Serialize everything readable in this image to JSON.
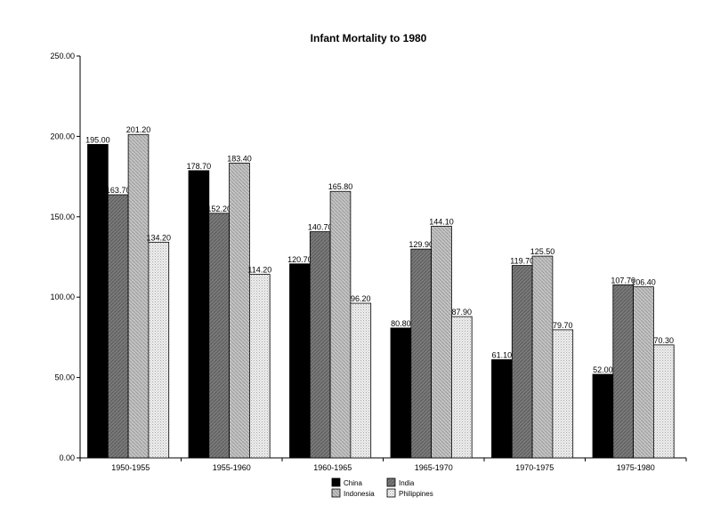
{
  "chart_data": {
    "type": "bar",
    "title": "Infant Mortality to 1980",
    "xlabel": "",
    "ylabel": "",
    "ylim": [
      0,
      250
    ],
    "yticks": [
      "0.00",
      "50.00",
      "100.00",
      "150.00",
      "200.00",
      "250.00"
    ],
    "categories": [
      "1950-1955",
      "1955-1960",
      "1960-1965",
      "1965-1970",
      "1970-1975",
      "1975-1980"
    ],
    "series": [
      {
        "name": "China",
        "values": [
          195.0,
          178.7,
          120.7,
          80.8,
          61.1,
          52.0
        ],
        "labels": [
          "195.00",
          "178.70",
          "120.70",
          "80.80",
          "61.10",
          "52.00"
        ],
        "color": "#000000",
        "pattern": "solid"
      },
      {
        "name": "India",
        "values": [
          163.7,
          152.2,
          140.7,
          129.9,
          119.7,
          107.7
        ],
        "labels": [
          "163.70",
          "152.20",
          "140.70",
          "129.90",
          "119.70",
          "107.70"
        ],
        "color": "#7a7a7a",
        "pattern": "dark-hatch"
      },
      {
        "name": "Indonesia",
        "values": [
          201.2,
          183.4,
          165.8,
          144.1,
          125.5,
          106.4
        ],
        "labels": [
          "201.20",
          "183.40",
          "165.80",
          "144.10",
          "125.50",
          "106.40"
        ],
        "color": "#bdbdbd",
        "pattern": "light-hatch"
      },
      {
        "name": "Philippines",
        "values": [
          134.2,
          114.2,
          96.2,
          87.9,
          79.7,
          70.3
        ],
        "labels": [
          "134.20",
          "114.20",
          "96.20",
          "87.90",
          "79.70",
          "70.30"
        ],
        "color": "#e4e4e4",
        "pattern": "dotted"
      }
    ],
    "legend_position": "bottom-center",
    "grid": false
  }
}
